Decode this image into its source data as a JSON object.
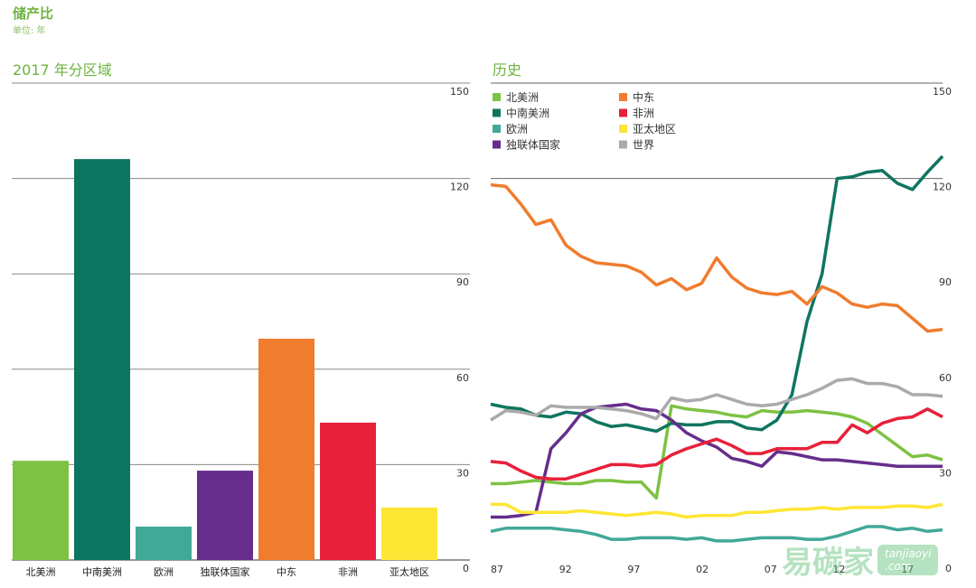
{
  "header": {
    "title": "储产比",
    "unit": "单位: 年"
  },
  "watermark": {
    "cn": "易碳家",
    "en": "tanjiaoyi",
    "domain": ".com"
  },
  "chart_data": [
    {
      "type": "bar",
      "title": "2017 年分区域",
      "categories": [
        "北美洲",
        "中南美洲",
        "欧洲",
        "独联体国家",
        "中东",
        "非洲",
        "亚太地区"
      ],
      "values": [
        31.2,
        126.1,
        10.5,
        28.1,
        69.6,
        43.2,
        16.5
      ],
      "colors": [
        "#7dc243",
        "#0e7560",
        "#42a898",
        "#662d8c",
        "#f07c2e",
        "#e8203a",
        "#fde634"
      ],
      "ylim": [
        0,
        150
      ],
      "yticks": [
        "0",
        "30",
        "60",
        "90",
        "120",
        "150"
      ],
      "grid": true
    },
    {
      "type": "line",
      "title": "历史",
      "x": [
        1987,
        1988,
        1989,
        1990,
        1991,
        1992,
        1993,
        1994,
        1995,
        1996,
        1997,
        1998,
        1999,
        2000,
        2001,
        2002,
        2003,
        2004,
        2005,
        2006,
        2007,
        2008,
        2009,
        2010,
        2011,
        2012,
        2013,
        2014,
        2015,
        2016,
        2017
      ],
      "xticks": [
        "87",
        "92",
        "97",
        "02",
        "07",
        "12",
        "17"
      ],
      "ylim": [
        0,
        150
      ],
      "yticks": [
        "0",
        "30",
        "60",
        "90",
        "120",
        "150"
      ],
      "legend": "top-left",
      "series": [
        {
          "name": "北美洲",
          "color": "#7dc243",
          "values": [
            24,
            24,
            24.5,
            25,
            24.5,
            24,
            24,
            25,
            25,
            24.5,
            24.5,
            19.5,
            48.5,
            47.5,
            47,
            46.5,
            45.5,
            45,
            47,
            46.5,
            46.5,
            47,
            46.5,
            46,
            45,
            43,
            39.5,
            36,
            32.5,
            33,
            31.5
          ]
        },
        {
          "name": "中南美洲",
          "color": "#0e7560",
          "values": [
            49,
            48,
            47.5,
            45.5,
            45,
            46.5,
            46,
            43.5,
            42,
            42.5,
            41.5,
            40.5,
            43,
            42.5,
            42.5,
            43.5,
            43.5,
            41.5,
            41,
            44,
            52,
            75,
            90,
            120,
            120.5,
            122,
            122.5,
            118.5,
            116.5,
            122,
            127
          ]
        },
        {
          "name": "欧洲",
          "color": "#42a898",
          "values": [
            9,
            10,
            10,
            10,
            10,
            9.5,
            9,
            8,
            6.5,
            6.5,
            7,
            7,
            7,
            6.5,
            7,
            6,
            6,
            6.5,
            7,
            7,
            7,
            6.5,
            6.5,
            7.5,
            9,
            10.5,
            10.5,
            9.5,
            10,
            9,
            9.5
          ]
        },
        {
          "name": "独联体国家",
          "color": "#662d8c",
          "values": [
            13.5,
            13.5,
            14,
            15,
            35,
            40,
            46,
            48,
            48.5,
            49,
            47.5,
            47,
            44,
            40,
            37.5,
            35.5,
            32,
            31,
            29.5,
            34,
            33.5,
            32.5,
            31.5,
            31.5,
            31,
            30.5,
            30,
            29.5,
            29.5,
            29.5,
            29.5
          ]
        },
        {
          "name": "中东",
          "color": "#f07c2e",
          "values": [
            118,
            117.5,
            112,
            105.5,
            107,
            99,
            95.5,
            93.5,
            93,
            92.5,
            90.5,
            86.5,
            88.5,
            85,
            87,
            95,
            89,
            85.5,
            84,
            83.5,
            84.5,
            80.5,
            86,
            84,
            80.5,
            79.5,
            80.5,
            80,
            76,
            72,
            72.5
          ]
        },
        {
          "name": "非洲",
          "color": "#e8203a",
          "values": [
            31,
            30.5,
            28,
            26,
            25.5,
            25.5,
            27,
            28.5,
            30,
            30,
            29.5,
            30,
            33,
            35,
            36.5,
            38,
            36,
            33.5,
            33.5,
            35,
            35,
            35,
            37,
            37,
            42.5,
            40,
            43,
            44.5,
            45,
            47.5,
            45
          ]
        },
        {
          "name": "亚太地区",
          "color": "#fde634",
          "values": [
            17.5,
            17.5,
            15,
            15,
            15,
            15,
            15.5,
            15,
            14.5,
            14,
            14.5,
            15,
            14.5,
            13.5,
            14,
            14,
            14,
            15,
            15,
            15.5,
            16,
            16,
            16.5,
            16,
            16.5,
            16.5,
            16.5,
            17,
            17,
            16.5,
            17.5
          ]
        },
        {
          "name": "世界",
          "color": "#aaaaaa",
          "values": [
            44,
            47,
            46.5,
            45.5,
            48.5,
            48,
            48,
            48,
            47.5,
            47,
            46,
            44.5,
            51,
            50,
            50.5,
            52,
            50.5,
            49,
            48.5,
            49,
            50.5,
            52,
            54,
            56.5,
            57,
            55.5,
            55.5,
            54.5,
            52,
            52,
            51.5
          ]
        }
      ]
    }
  ]
}
